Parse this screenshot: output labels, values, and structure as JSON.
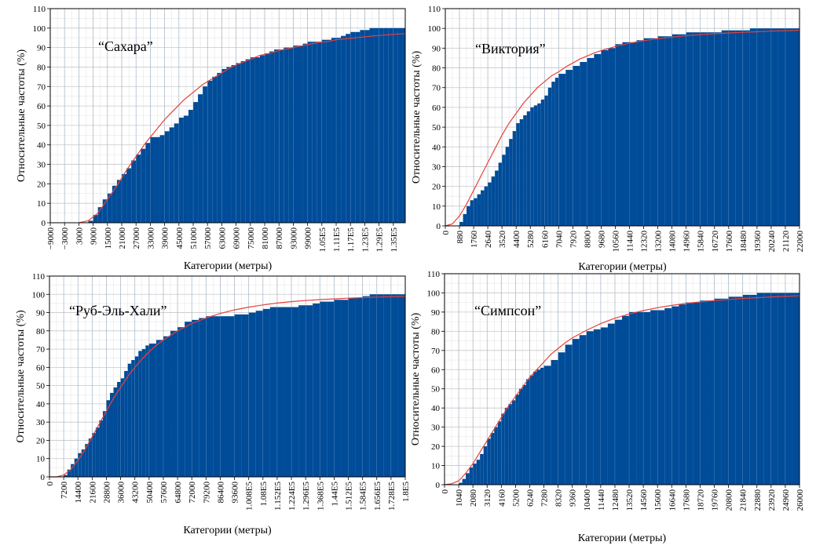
{
  "chart_data": [
    {
      "type": "bar",
      "title": "“Сахара”",
      "xlabel": "Категории (метры)",
      "ylabel": "Относительные частоты (%)",
      "ylim": [
        0,
        110
      ],
      "yticks": [
        0,
        10,
        20,
        30,
        40,
        50,
        60,
        70,
        80,
        90,
        100,
        110
      ],
      "xlim": [
        -9000,
        140000
      ],
      "xticks": [
        -9000,
        -3000,
        3000,
        9000,
        15000,
        21000,
        27000,
        33000,
        39000,
        45000,
        51000,
        57000,
        63000,
        69000,
        75000,
        81000,
        87000,
        93000,
        99000,
        105000,
        111000,
        117000,
        123000,
        129000,
        135000
      ],
      "xtick_labels": [
        "−9000",
        "−3000",
        "3000",
        "9000",
        "15000",
        "21000",
        "27000",
        "33000",
        "39000",
        "45000",
        "51000",
        "57000",
        "63000",
        "69000",
        "75000",
        "81000",
        "87000",
        "93000",
        "99000",
        "1.05E5",
        "1.11E5",
        "1.17E5",
        "1.23E5",
        "1.29E5",
        "1.35E5"
      ],
      "grid": true,
      "bar_color": "#004c99",
      "curve_color": "#e8403a",
      "cumulative": {
        "x": [
          -9000,
          7000,
          9000,
          11000,
          13000,
          15000,
          17000,
          19000,
          21000,
          23000,
          25000,
          27000,
          29000,
          31000,
          33000,
          35000,
          37000,
          39000,
          41000,
          43000,
          45000,
          47000,
          49000,
          51000,
          53000,
          55000,
          57000,
          59000,
          61000,
          63000,
          65000,
          67000,
          69000,
          71000,
          73000,
          75000,
          77000,
          79000,
          81000,
          83000,
          85000,
          87000,
          89000,
          91000,
          93000,
          95000,
          97000,
          99000,
          101000,
          103000,
          105000,
          107000,
          109000,
          111000,
          113000,
          115000,
          117000,
          119000,
          121000,
          123000,
          125000,
          127000,
          129000,
          131000,
          133000,
          135000,
          137000,
          139000,
          140000
        ],
        "y": [
          0,
          1,
          4,
          8,
          12,
          15,
          19,
          22,
          25,
          28,
          32,
          35,
          38,
          41,
          44,
          44,
          45,
          47,
          49,
          51,
          54,
          55,
          58,
          62,
          66,
          70,
          73,
          75,
          77,
          79,
          80,
          81,
          82,
          83,
          84,
          85,
          85,
          86,
          87,
          88,
          89,
          89,
          90,
          90,
          91,
          91,
          92,
          93,
          93,
          93,
          94,
          94,
          95,
          95,
          96,
          97,
          98,
          98,
          99,
          99,
          100,
          100,
          100,
          100,
          100,
          100,
          100,
          100,
          100
        ]
      },
      "fitted_curve": {
        "x": [
          3000,
          7000,
          11000,
          15000,
          19000,
          23000,
          27000,
          31000,
          35000,
          39000,
          43000,
          47000,
          51000,
          55000,
          59000,
          63000,
          67000,
          71000,
          75000,
          79000,
          83000,
          87000,
          91000,
          95000,
          99000,
          103000,
          107000,
          111000,
          115000,
          119000,
          123000,
          127000,
          131000,
          135000,
          140000
        ],
        "y": [
          0,
          1,
          5,
          12,
          19,
          27,
          34,
          41,
          47,
          53,
          58,
          63,
          67,
          71,
          74,
          77,
          80,
          82,
          84,
          86,
          87,
          88.5,
          89.5,
          90.5,
          91.5,
          92.5,
          93,
          94,
          94.5,
          95,
          95.5,
          96,
          96.4,
          96.8,
          97.2
        ]
      }
    },
    {
      "type": "bar",
      "title": "“Виктория”",
      "xlabel": "Категории (метры)",
      "ylabel": "Относительные частоты (%)",
      "ylim": [
        0,
        110
      ],
      "yticks": [
        0,
        10,
        20,
        30,
        40,
        50,
        60,
        70,
        80,
        90,
        100,
        110
      ],
      "xlim": [
        0,
        22000
      ],
      "xticks": [
        0,
        880,
        1760,
        2640,
        3520,
        4400,
        5280,
        6160,
        7040,
        7920,
        8800,
        9680,
        10560,
        11440,
        12320,
        13200,
        14080,
        14960,
        15840,
        16720,
        17600,
        18480,
        19360,
        20240,
        21120,
        22000
      ],
      "xtick_labels": [
        "0",
        "880",
        "1760",
        "2640",
        "3520",
        "4400",
        "5280",
        "6160",
        "7040",
        "7920",
        "8800",
        "9680",
        "10560",
        "11440",
        "12320",
        "13200",
        "14080",
        "14960",
        "15840",
        "16720",
        "17600",
        "18480",
        "19360",
        "20240",
        "21120",
        "22000"
      ],
      "grid": true,
      "bar_color": "#004c99",
      "curve_color": "#e8403a",
      "cumulative": {
        "x": [
          0,
          440,
          880,
          1100,
          1320,
          1540,
          1760,
          1980,
          2200,
          2420,
          2640,
          2860,
          3080,
          3300,
          3520,
          3740,
          3960,
          4180,
          4400,
          4620,
          4840,
          5060,
          5280,
          5500,
          5720,
          5940,
          6160,
          6380,
          6600,
          6820,
          7040,
          7480,
          7920,
          8360,
          8800,
          9240,
          9680,
          10120,
          10560,
          11000,
          11440,
          11880,
          12320,
          12760,
          13200,
          13640,
          14080,
          14520,
          14960,
          15400,
          15840,
          16280,
          16720,
          17160,
          17600,
          18040,
          18480,
          18920,
          19360,
          19800,
          20240,
          20680,
          21120,
          21560,
          22000
        ],
        "y": [
          0,
          0,
          2,
          6,
          10,
          13,
          14,
          16,
          18,
          20,
          22,
          25,
          28,
          32,
          36,
          40,
          44,
          48,
          52,
          54,
          56,
          58,
          60,
          61,
          62,
          64,
          66,
          70,
          73,
          75,
          77,
          79,
          81,
          83,
          85,
          87,
          89,
          90,
          92,
          93,
          93,
          94,
          95,
          95,
          96,
          96,
          97,
          97,
          98,
          98,
          98,
          98,
          98,
          99,
          99,
          99,
          99,
          100,
          100,
          100,
          100,
          100,
          100,
          100,
          100
        ]
      },
      "fitted_curve": {
        "x": [
          0,
          440,
          880,
          1320,
          1760,
          2200,
          2640,
          3080,
          3520,
          3960,
          4400,
          4840,
          5280,
          5720,
          6160,
          6600,
          7040,
          7480,
          7920,
          8360,
          8800,
          9240,
          9680,
          10560,
          11440,
          12320,
          13200,
          14080,
          14960,
          15840,
          16720,
          17600,
          18480,
          19360,
          20240,
          21120,
          22000
        ],
        "y": [
          0,
          1,
          5,
          11,
          18,
          25,
          32,
          39,
          46,
          52,
          57,
          62,
          66,
          70,
          73,
          76,
          78,
          80.5,
          82.5,
          84.5,
          86,
          87.5,
          88.8,
          90.8,
          92.5,
          93.8,
          94.8,
          95.6,
          96.3,
          96.8,
          97.3,
          97.7,
          98,
          98.3,
          98.6,
          98.8,
          99
        ]
      }
    },
    {
      "type": "bar",
      "title": "“Руб-Эль-Хали”",
      "xlabel": "Категории (метры)",
      "ylabel": "Относительные частоты (%)",
      "ylim": [
        0,
        110
      ],
      "yticks": [
        0,
        10,
        20,
        30,
        40,
        50,
        60,
        70,
        80,
        90,
        100,
        110
      ],
      "xlim": [
        0,
        180000
      ],
      "xticks": [
        0,
        7200,
        14400,
        21600,
        28800,
        36000,
        43200,
        50400,
        57600,
        64800,
        72000,
        79200,
        86400,
        93600,
        100800,
        108000,
        115200,
        122400,
        129600,
        136800,
        144000,
        151200,
        158400,
        165600,
        172800,
        180000
      ],
      "xtick_labels": [
        "0",
        "7200",
        "14400",
        "21600",
        "28800",
        "36000",
        "43200",
        "50400",
        "57600",
        "64800",
        "72000",
        "79200",
        "86400",
        "93600",
        "1.008E5",
        "1.08E5",
        "1.152E5",
        "1.224E5",
        "1.296E5",
        "1.368E5",
        "1.44E5",
        "1.512E5",
        "1.584E5",
        "1.656E5",
        "1.728E5",
        "1.8E5"
      ],
      "grid": true,
      "bar_color": "#004c99",
      "curve_color": "#e8403a",
      "cumulative": {
        "x": [
          0,
          3600,
          7200,
          9000,
          10800,
          12600,
          14400,
          16200,
          18000,
          19800,
          21600,
          23400,
          25200,
          27000,
          28800,
          30600,
          32400,
          34200,
          36000,
          37800,
          39600,
          41400,
          43200,
          45000,
          46800,
          48600,
          50400,
          54000,
          57600,
          61200,
          64800,
          68400,
          72000,
          75600,
          79200,
          82800,
          86400,
          90000,
          93600,
          97200,
          100800,
          104400,
          108000,
          111600,
          115200,
          118800,
          122400,
          126000,
          129600,
          133200,
          136800,
          140400,
          144000,
          147600,
          151200,
          154800,
          158400,
          162000,
          165600,
          169200,
          172800,
          176400,
          180000
        ],
        "y": [
          0,
          0,
          1,
          4,
          7,
          10,
          13,
          15,
          18,
          21,
          24,
          27,
          31,
          36,
          42,
          46,
          49,
          52,
          54,
          58,
          62,
          64,
          66,
          69,
          70,
          72,
          73,
          75,
          77,
          80,
          82,
          85,
          86,
          87,
          88,
          88,
          88,
          88,
          89,
          89,
          90,
          91,
          92,
          93,
          93,
          93,
          93,
          94,
          94,
          95,
          96,
          96,
          97,
          97,
          98,
          98,
          99,
          100,
          100,
          100,
          100,
          100,
          100
        ]
      },
      "fitted_curve": {
        "x": [
          0,
          3600,
          7200,
          10800,
          14400,
          18000,
          21600,
          25200,
          28800,
          32400,
          36000,
          39600,
          43200,
          46800,
          50400,
          54000,
          57600,
          64800,
          72000,
          79200,
          86400,
          93600,
          100800,
          108000,
          115200,
          122400,
          129600,
          136800,
          144000,
          151200,
          158400,
          165600,
          172800,
          180000
        ],
        "y": [
          0,
          0,
          1,
          4,
          9,
          15,
          22,
          29,
          36,
          43,
          49,
          55,
          60,
          64.5,
          68.5,
          72,
          75,
          80,
          84,
          87,
          89.5,
          91.5,
          93,
          94.2,
          95.2,
          96,
          96.6,
          97.1,
          97.5,
          97.9,
          98.2,
          98.5,
          98.7,
          98.9
        ]
      }
    },
    {
      "type": "bar",
      "title": "“Симпсон”",
      "xlabel": "Категории (метры)",
      "ylabel": "Относительные частоты (%)",
      "ylim": [
        0,
        110
      ],
      "yticks": [
        0,
        10,
        20,
        30,
        40,
        50,
        60,
        70,
        80,
        90,
        100,
        110
      ],
      "xlim": [
        0,
        26000
      ],
      "xticks": [
        0,
        1040,
        2080,
        3120,
        4160,
        5200,
        6240,
        7280,
        8320,
        9360,
        10400,
        11440,
        12480,
        13520,
        14560,
        15600,
        16640,
        17680,
        18720,
        19760,
        20800,
        21840,
        22880,
        23920,
        24960,
        26000
      ],
      "xtick_labels": [
        "0",
        "1040",
        "2080",
        "3120",
        "4160",
        "5200",
        "6240",
        "7280",
        "8320",
        "9360",
        "10400",
        "11440",
        "12480",
        "13520",
        "14560",
        "15600",
        "16640",
        "17680",
        "18720",
        "19760",
        "20800",
        "21840",
        "22880",
        "23920",
        "24960",
        "26000"
      ],
      "grid": true,
      "bar_color": "#004c99",
      "curve_color": "#e8403a",
      "cumulative": {
        "x": [
          0,
          520,
          1040,
          1300,
          1560,
          1820,
          2080,
          2340,
          2600,
          2860,
          3120,
          3380,
          3640,
          3900,
          4160,
          4420,
          4680,
          4940,
          5200,
          5460,
          5720,
          5980,
          6240,
          6500,
          6760,
          7020,
          7280,
          7800,
          8320,
          8840,
          9360,
          9880,
          10400,
          10920,
          11440,
          11960,
          12480,
          13000,
          13520,
          14040,
          14560,
          15080,
          15600,
          16120,
          16640,
          17160,
          17680,
          18200,
          18720,
          19240,
          19760,
          20280,
          20800,
          21320,
          21840,
          22360,
          22880,
          23400,
          23920,
          24440,
          24960,
          25480,
          26000
        ],
        "y": [
          0,
          0,
          1,
          3,
          6,
          9,
          11,
          13,
          16,
          20,
          24,
          27,
          30,
          33,
          37,
          40,
          42,
          44,
          47,
          50,
          52,
          55,
          57,
          59,
          60,
          61,
          62,
          65,
          69,
          73,
          76,
          78,
          80,
          81,
          82,
          84,
          86,
          88,
          90,
          90,
          90,
          91,
          91,
          92,
          93,
          94,
          95,
          95,
          96,
          96,
          97,
          97,
          98,
          98,
          99,
          99,
          100,
          100,
          100,
          100,
          100,
          100,
          100
        ]
      },
      "fitted_curve": {
        "x": [
          0,
          520,
          1040,
          1560,
          2080,
          2600,
          3120,
          3640,
          4160,
          4680,
          5200,
          5720,
          6240,
          6760,
          7280,
          7800,
          8320,
          8840,
          9360,
          10400,
          11440,
          12480,
          13520,
          14560,
          15600,
          16640,
          17680,
          18720,
          19760,
          20800,
          21840,
          22880,
          23920,
          24960,
          26000
        ],
        "y": [
          0,
          0.5,
          2,
          6,
          11,
          17,
          23,
          29,
          35,
          41,
          46,
          51,
          56,
          60,
          64,
          68,
          71,
          74,
          76.5,
          80.5,
          84,
          86.8,
          89,
          90.8,
          92.3,
          93.5,
          94.5,
          95.3,
          96,
          96.6,
          97.1,
          97.5,
          97.9,
          98.2,
          98.5
        ]
      }
    }
  ]
}
